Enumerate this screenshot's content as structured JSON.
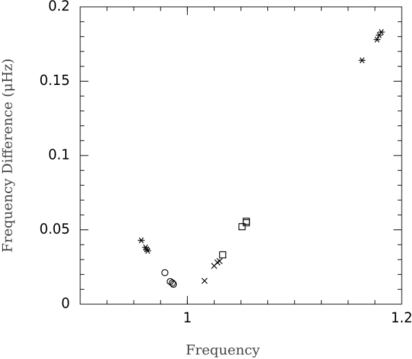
{
  "chart_data": {
    "type": "scatter",
    "xlabel": "Frequency",
    "ylabel": "Frequency Difference (μHz)",
    "xlim": [
      0.9,
      1.2
    ],
    "xticks": [
      1,
      1.2
    ],
    "ylim": [
      0,
      0.2
    ],
    "yticks": [
      0,
      0.05,
      0.1,
      0.15,
      0.2
    ],
    "series": [
      {
        "marker": "asterisk",
        "color": "#000000",
        "x": [
          0.957,
          0.961,
          0.962,
          0.963,
          1.163,
          1.177,
          1.179,
          1.181
        ],
        "values": [
          0.0429,
          0.0382,
          0.0369,
          0.0359,
          0.164,
          0.178,
          0.181,
          0.183
        ]
      },
      {
        "marker": "circle",
        "color": "#000000",
        "x": [
          0.979,
          0.984,
          0.986,
          0.987
        ],
        "values": [
          0.0212,
          0.0152,
          0.0143,
          0.0134
        ]
      },
      {
        "marker": "cross",
        "color": "#000000",
        "x": [
          1.016,
          1.025,
          1.028,
          1.03
        ],
        "values": [
          0.0157,
          0.0258,
          0.0281,
          0.029
        ]
      },
      {
        "marker": "square",
        "color": "#000000",
        "x": [
          1.033,
          1.051,
          1.055,
          1.055
        ],
        "values": [
          0.0332,
          0.0521,
          0.0548,
          0.0558
        ]
      }
    ]
  }
}
